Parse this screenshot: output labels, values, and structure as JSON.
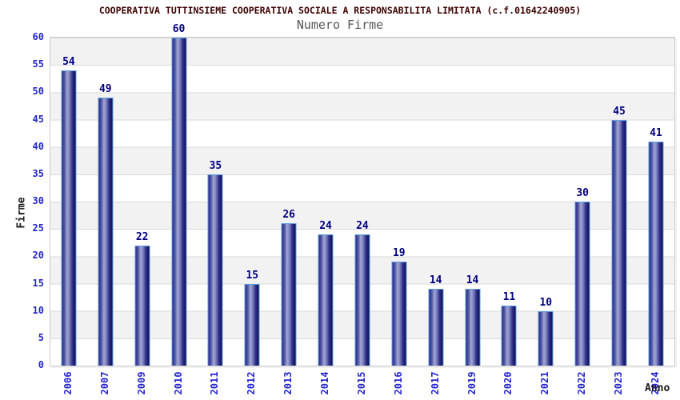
{
  "header": {
    "title": "COOPERATIVA TUTTINSIEME COOPERATIVA SOCIALE A RESPONSABILITA LIMITATA (c.f.01642240905)",
    "subtitle": "Numero Firme"
  },
  "chart_data": {
    "type": "bar",
    "title": "Numero Firme",
    "categories": [
      "2006",
      "2007",
      "2009",
      "2010",
      "2011",
      "2012",
      "2013",
      "2014",
      "2015",
      "2016",
      "2017",
      "2019",
      "2020",
      "2021",
      "2022",
      "2023",
      "2024"
    ],
    "values": [
      54,
      49,
      22,
      60,
      35,
      15,
      26,
      24,
      24,
      19,
      14,
      14,
      11,
      10,
      30,
      45,
      41
    ],
    "xlabel": "Anno",
    "ylabel": "Firme",
    "ylim": [
      0,
      60
    ],
    "ytick_step": 5,
    "grid": true,
    "legend": "none",
    "bands": "alternating horizontal gray/white every 5 units, gray band at top (55-60)",
    "colors": {
      "title": "#3d0101",
      "subtitle": "#555555",
      "tick_label": "#2424cf",
      "value_label": "#00007d",
      "axis_title": "#1a1a1a",
      "bar_dark": "#1b1b6e",
      "bar_light": "#a3a8d4",
      "bar_border": "#5e9fe0",
      "band_gray": "#f2f2f2",
      "gridline": "#dadada"
    }
  }
}
